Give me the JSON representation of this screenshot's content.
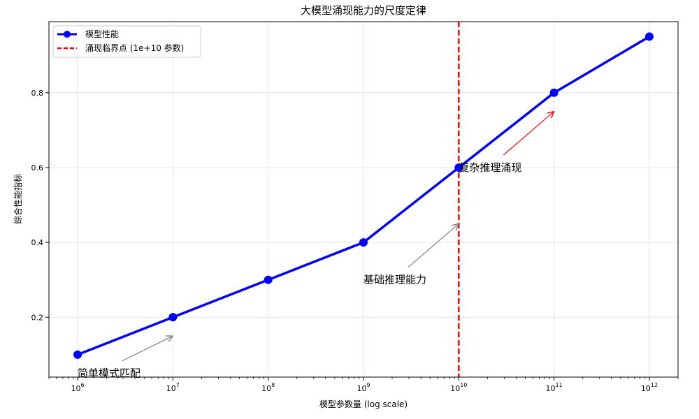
{
  "chart_data": {
    "type": "line",
    "title": "大模型涌现能力的尺度定律",
    "xlabel": "模型参数量 (log scale)",
    "ylabel": "综合性能指标",
    "x_scale": "log",
    "xlim": [
      500000,
      2000000000000
    ],
    "ylim": [
      0.04,
      0.99
    ],
    "grid": true,
    "legend_placement": "top-left",
    "x_tick_labels": [
      {
        "value": 1000000,
        "base": "10",
        "exp": "6"
      },
      {
        "value": 10000000,
        "base": "10",
        "exp": "7"
      },
      {
        "value": 100000000,
        "base": "10",
        "exp": "8"
      },
      {
        "value": 1000000000,
        "base": "10",
        "exp": "9"
      },
      {
        "value": 10000000000,
        "base": "10",
        "exp": "10"
      },
      {
        "value": 100000000000,
        "base": "10",
        "exp": "11"
      },
      {
        "value": 1000000000000,
        "base": "10",
        "exp": "12"
      }
    ],
    "y_ticks": [
      {
        "value": 0.2,
        "label": "0.2"
      },
      {
        "value": 0.4,
        "label": "0.4"
      },
      {
        "value": 0.6,
        "label": "0.6"
      },
      {
        "value": 0.8,
        "label": "0.8"
      }
    ],
    "series": [
      {
        "name": "模型性能",
        "color": "#0000ff",
        "x": [
          1000000,
          10000000,
          100000000,
          1000000000,
          10000000000,
          100000000000,
          1000000000000
        ],
        "y": [
          0.1,
          0.2,
          0.3,
          0.4,
          0.6,
          0.8,
          0.95
        ]
      }
    ],
    "threshold": {
      "name": "涌现临界点 (1e+10 参数)",
      "x": 10000000000,
      "color": "#ff0000"
    },
    "annotations": [
      {
        "text": "简单模式匹配",
        "text_x": 1000000,
        "text_y": 0.05,
        "arrow_x": 10000000,
        "arrow_y": 0.15,
        "color": "#808080"
      },
      {
        "text": "基础推理能力",
        "text_x": 1000000000,
        "text_y": 0.3,
        "arrow_x": 10000000000,
        "arrow_y": 0.45,
        "color": "#808080"
      },
      {
        "text": "复杂推理涌现",
        "text_x": 10000000000,
        "text_y": 0.6,
        "arrow_x": 100000000000,
        "arrow_y": 0.75,
        "color": "#ff0000"
      }
    ]
  }
}
